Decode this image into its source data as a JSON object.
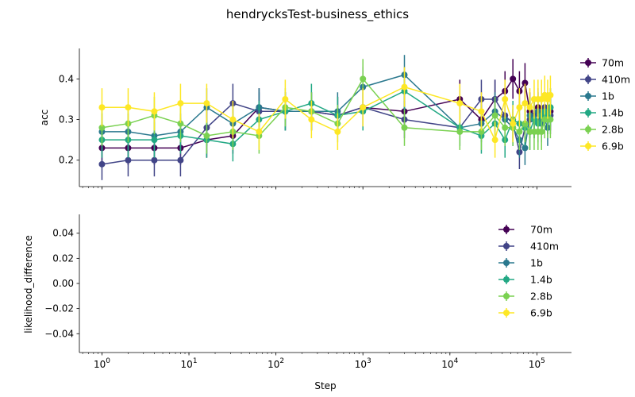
{
  "chart_data": {
    "type": "line",
    "title": "hendrycksTest-business_ethics",
    "xscale": "log",
    "xlabel": "Step",
    "xlim": [
      0.55,
      250000
    ],
    "x_ticks": [
      1,
      10,
      100,
      1000,
      10000,
      100000
    ],
    "x_tick_labels": [
      {
        "base": "10",
        "exp": "0"
      },
      {
        "base": "10",
        "exp": "1"
      },
      {
        "base": "10",
        "exp": "2"
      },
      {
        "base": "10",
        "exp": "3"
      },
      {
        "base": "10",
        "exp": "4"
      },
      {
        "base": "10",
        "exp": "5"
      }
    ],
    "legend_location": "right",
    "panels": [
      {
        "ylabel": "acc",
        "ylim": [
          0.135,
          0.475
        ],
        "y_ticks": [
          0.2,
          0.3,
          0.4
        ],
        "y_tick_labels": [
          "0.2",
          "0.3",
          "0.4"
        ],
        "legend_location": "upper-right-outside",
        "has_data": true
      },
      {
        "ylabel": "likelihood_difference",
        "ylim": [
          -0.055,
          0.055
        ],
        "y_ticks": [
          -0.04,
          -0.02,
          0.0,
          0.02,
          0.04
        ],
        "y_tick_labels": [
          "−0.04",
          "−0.02",
          "0.00",
          "0.02",
          "0.04"
        ],
        "legend_location": "upper-right",
        "has_data": false
      }
    ],
    "series": [
      {
        "name": "70m",
        "color": "#440154",
        "x": [
          1,
          2,
          4,
          8,
          16,
          32,
          64,
          128,
          256,
          512,
          1000,
          3000,
          13000,
          23000,
          33000,
          43000,
          53000,
          63000,
          73000,
          83000,
          93000,
          103000,
          113000,
          123000,
          133000,
          143000
        ],
        "y": [
          0.23,
          0.23,
          0.23,
          0.23,
          0.25,
          0.26,
          0.33,
          0.32,
          0.32,
          0.31,
          0.33,
          0.32,
          0.35,
          0.3,
          0.35,
          0.37,
          0.4,
          0.37,
          0.39,
          0.32,
          0.3,
          0.33,
          0.31,
          0.32,
          0.31,
          0.32
        ],
        "err": [
          0.042,
          0.042,
          0.042,
          0.042,
          0.044,
          0.044,
          0.047,
          0.047,
          0.047,
          0.046,
          0.047,
          0.047,
          0.048,
          0.046,
          0.048,
          0.049,
          0.049,
          0.049,
          0.049,
          0.047,
          0.046,
          0.047,
          0.046,
          0.047,
          0.046,
          0.047
        ]
      },
      {
        "name": "410m",
        "color": "#414487",
        "x": [
          1,
          2,
          4,
          8,
          16,
          32,
          64,
          128,
          256,
          512,
          1000,
          3000,
          13000,
          23000,
          33000,
          43000,
          53000,
          63000,
          73000,
          83000,
          93000,
          103000,
          113000,
          123000,
          133000,
          143000
        ],
        "y": [
          0.19,
          0.2,
          0.2,
          0.2,
          0.28,
          0.34,
          0.32,
          0.32,
          0.32,
          0.31,
          0.33,
          0.3,
          0.28,
          0.35,
          0.35,
          0.31,
          0.29,
          0.22,
          0.28,
          0.3,
          0.31,
          0.32,
          0.3,
          0.33,
          0.32,
          0.31
        ],
        "err": [
          0.039,
          0.04,
          0.04,
          0.04,
          0.045,
          0.048,
          0.047,
          0.047,
          0.047,
          0.046,
          0.047,
          0.046,
          0.045,
          0.048,
          0.048,
          0.046,
          0.046,
          0.042,
          0.045,
          0.046,
          0.046,
          0.047,
          0.046,
          0.047,
          0.047,
          0.046
        ]
      },
      {
        "name": "1b",
        "color": "#2a788e",
        "x": [
          1,
          2,
          4,
          8,
          16,
          32,
          64,
          128,
          256,
          512,
          1000,
          3000,
          13000,
          23000,
          33000,
          43000,
          53000,
          63000,
          73000,
          83000,
          93000,
          103000,
          113000,
          123000,
          133000,
          143000
        ],
        "y": [
          0.27,
          0.27,
          0.26,
          0.27,
          0.33,
          0.29,
          0.33,
          0.32,
          0.32,
          0.32,
          0.38,
          0.41,
          0.28,
          0.29,
          0.32,
          0.3,
          0.28,
          0.25,
          0.23,
          0.31,
          0.3,
          0.32,
          0.29,
          0.3,
          0.28,
          0.33
        ],
        "err": [
          0.045,
          0.045,
          0.044,
          0.045,
          0.047,
          0.046,
          0.047,
          0.047,
          0.047,
          0.047,
          0.049,
          0.049,
          0.045,
          0.046,
          0.047,
          0.046,
          0.045,
          0.044,
          0.042,
          0.046,
          0.046,
          0.047,
          0.046,
          0.046,
          0.045,
          0.047
        ]
      },
      {
        "name": "1.4b",
        "color": "#22a884",
        "x": [
          1,
          2,
          4,
          8,
          16,
          32,
          64,
          128,
          256,
          512,
          1000,
          3000,
          13000,
          23000,
          33000,
          43000,
          53000,
          63000,
          73000,
          83000,
          93000,
          103000,
          113000,
          123000,
          133000,
          143000
        ],
        "y": [
          0.25,
          0.25,
          0.25,
          0.26,
          0.25,
          0.24,
          0.3,
          0.32,
          0.34,
          0.31,
          0.32,
          0.37,
          0.28,
          0.26,
          0.29,
          0.25,
          0.3,
          0.29,
          0.28,
          0.27,
          0.3,
          0.29,
          0.31,
          0.32,
          0.31,
          0.33
        ],
        "err": [
          0.044,
          0.044,
          0.044,
          0.044,
          0.044,
          0.043,
          0.046,
          0.047,
          0.048,
          0.046,
          0.047,
          0.049,
          0.045,
          0.044,
          0.046,
          0.044,
          0.046,
          0.046,
          0.045,
          0.045,
          0.046,
          0.046,
          0.046,
          0.047,
          0.046,
          0.047
        ]
      },
      {
        "name": "2.8b",
        "color": "#7ad151",
        "x": [
          1,
          2,
          4,
          8,
          16,
          32,
          64,
          128,
          256,
          512,
          1000,
          3000,
          13000,
          23000,
          33000,
          43000,
          53000,
          63000,
          73000,
          83000,
          93000,
          103000,
          113000,
          123000,
          133000,
          143000
        ],
        "y": [
          0.28,
          0.29,
          0.31,
          0.29,
          0.26,
          0.27,
          0.26,
          0.33,
          0.32,
          0.29,
          0.4,
          0.28,
          0.27,
          0.27,
          0.31,
          0.28,
          0.28,
          0.27,
          0.29,
          0.27,
          0.27,
          0.27,
          0.27,
          0.3,
          0.3,
          0.3
        ],
        "err": [
          0.045,
          0.046,
          0.046,
          0.046,
          0.044,
          0.045,
          0.044,
          0.047,
          0.047,
          0.046,
          0.049,
          0.045,
          0.045,
          0.045,
          0.046,
          0.045,
          0.045,
          0.045,
          0.046,
          0.045,
          0.045,
          0.045,
          0.045,
          0.046,
          0.046,
          0.046
        ]
      },
      {
        "name": "6.9b",
        "color": "#fde725",
        "x": [
          1,
          2,
          4,
          8,
          16,
          32,
          64,
          128,
          256,
          512,
          1000,
          3000,
          13000,
          23000,
          33000,
          43000,
          53000,
          63000,
          73000,
          83000,
          93000,
          103000,
          113000,
          123000,
          133000,
          143000
        ],
        "y": [
          0.33,
          0.33,
          0.32,
          0.34,
          0.34,
          0.3,
          0.27,
          0.35,
          0.3,
          0.27,
          0.33,
          0.38,
          0.34,
          0.32,
          0.25,
          0.35,
          0.29,
          0.33,
          0.34,
          0.33,
          0.35,
          0.35,
          0.35,
          0.36,
          0.35,
          0.36
        ],
        "err": [
          0.047,
          0.047,
          0.047,
          0.048,
          0.048,
          0.046,
          0.045,
          0.048,
          0.046,
          0.045,
          0.047,
          0.049,
          0.048,
          0.047,
          0.044,
          0.048,
          0.046,
          0.047,
          0.048,
          0.047,
          0.048,
          0.048,
          0.048,
          0.048,
          0.048,
          0.048
        ]
      }
    ]
  }
}
